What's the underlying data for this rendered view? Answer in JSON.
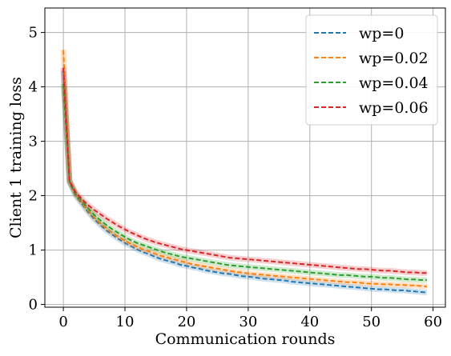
{
  "chart_data": {
    "type": "line",
    "xlabel": "Communication rounds",
    "ylabel": "Client 1 training loss",
    "xlim": [
      -3,
      62
    ],
    "ylim": [
      -0.05,
      5.45
    ],
    "xticks": [
      0,
      10,
      20,
      30,
      40,
      50,
      60
    ],
    "yticks": [
      0,
      1,
      2,
      3,
      4,
      5
    ],
    "grid": true,
    "line_style": "dashed",
    "legend_position": "top-right",
    "series": [
      {
        "name": "wp=0",
        "color": "#1f77b4",
        "x": [
          0,
          1,
          2,
          3,
          4,
          5,
          6,
          7,
          8,
          9,
          10,
          11,
          12,
          13,
          14,
          15,
          16,
          17,
          18,
          19,
          20,
          21,
          22,
          23,
          24,
          25,
          26,
          27,
          28,
          29,
          30,
          31,
          32,
          33,
          34,
          35,
          36,
          37,
          38,
          39,
          40,
          41,
          42,
          43,
          44,
          45,
          46,
          47,
          48,
          49,
          50,
          51,
          52,
          53,
          54,
          55,
          56,
          57,
          58,
          59
        ],
        "y": [
          4.3,
          2.25,
          2.0,
          1.85,
          1.7,
          1.57,
          1.46,
          1.36,
          1.28,
          1.2,
          1.13,
          1.07,
          1.01,
          0.96,
          0.92,
          0.87,
          0.83,
          0.8,
          0.77,
          0.73,
          0.71,
          0.68,
          0.66,
          0.63,
          0.61,
          0.59,
          0.57,
          0.56,
          0.54,
          0.52,
          0.51,
          0.5,
          0.48,
          0.47,
          0.46,
          0.45,
          0.44,
          0.42,
          0.41,
          0.4,
          0.39,
          0.38,
          0.37,
          0.36,
          0.35,
          0.34,
          0.33,
          0.32,
          0.31,
          0.3,
          0.29,
          0.28,
          0.28,
          0.27,
          0.26,
          0.26,
          0.25,
          0.24,
          0.23,
          0.22
        ]
      },
      {
        "name": "wp=0.02",
        "color": "#ff7f0e",
        "x": [
          0,
          1,
          2,
          3,
          4,
          5,
          6,
          7,
          8,
          9,
          10,
          11,
          12,
          13,
          14,
          15,
          16,
          17,
          18,
          19,
          20,
          21,
          22,
          23,
          24,
          25,
          26,
          27,
          28,
          29,
          30,
          31,
          32,
          33,
          34,
          35,
          36,
          37,
          38,
          39,
          40,
          41,
          42,
          43,
          44,
          45,
          46,
          47,
          48,
          49,
          50,
          51,
          52,
          53,
          54,
          55,
          56,
          57,
          58,
          59
        ],
        "y": [
          4.68,
          2.27,
          2.02,
          1.87,
          1.73,
          1.6,
          1.49,
          1.4,
          1.31,
          1.24,
          1.17,
          1.11,
          1.06,
          1.01,
          0.97,
          0.93,
          0.89,
          0.86,
          0.83,
          0.8,
          0.77,
          0.74,
          0.72,
          0.7,
          0.68,
          0.66,
          0.64,
          0.62,
          0.6,
          0.59,
          0.57,
          0.56,
          0.55,
          0.54,
          0.53,
          0.52,
          0.51,
          0.5,
          0.49,
          0.48,
          0.47,
          0.46,
          0.45,
          0.44,
          0.43,
          0.42,
          0.41,
          0.41,
          0.4,
          0.39,
          0.38,
          0.38,
          0.37,
          0.37,
          0.36,
          0.36,
          0.35,
          0.35,
          0.34,
          0.33
        ]
      },
      {
        "name": "wp=0.04",
        "color": "#2ca02c",
        "x": [
          0,
          1,
          2,
          3,
          4,
          5,
          6,
          7,
          8,
          9,
          10,
          11,
          12,
          13,
          14,
          15,
          16,
          17,
          18,
          19,
          20,
          21,
          22,
          23,
          24,
          25,
          26,
          27,
          28,
          29,
          30,
          31,
          32,
          33,
          34,
          35,
          36,
          37,
          38,
          39,
          40,
          41,
          42,
          43,
          44,
          45,
          46,
          47,
          48,
          49,
          50,
          51,
          52,
          53,
          54,
          55,
          56,
          57,
          58,
          59
        ],
        "y": [
          4.05,
          2.25,
          2.03,
          1.9,
          1.77,
          1.65,
          1.55,
          1.46,
          1.38,
          1.31,
          1.24,
          1.18,
          1.13,
          1.09,
          1.05,
          1.01,
          0.97,
          0.94,
          0.91,
          0.88,
          0.86,
          0.84,
          0.82,
          0.8,
          0.78,
          0.76,
          0.74,
          0.72,
          0.71,
          0.7,
          0.69,
          0.68,
          0.67,
          0.66,
          0.65,
          0.64,
          0.63,
          0.62,
          0.61,
          0.6,
          0.59,
          0.58,
          0.57,
          0.56,
          0.55,
          0.54,
          0.54,
          0.53,
          0.52,
          0.51,
          0.51,
          0.5,
          0.49,
          0.49,
          0.48,
          0.47,
          0.46,
          0.46,
          0.45,
          0.45
        ]
      },
      {
        "name": "wp=0.06",
        "color": "#d62728",
        "x": [
          0,
          1,
          2,
          3,
          4,
          5,
          6,
          7,
          8,
          9,
          10,
          11,
          12,
          13,
          14,
          15,
          16,
          17,
          18,
          19,
          20,
          21,
          22,
          23,
          24,
          25,
          26,
          27,
          28,
          29,
          30,
          31,
          32,
          33,
          34,
          35,
          36,
          37,
          38,
          39,
          40,
          41,
          42,
          43,
          44,
          45,
          46,
          47,
          48,
          49,
          50,
          51,
          52,
          53,
          54,
          55,
          56,
          57,
          58,
          59
        ],
        "y": [
          4.35,
          2.27,
          2.06,
          1.94,
          1.83,
          1.74,
          1.66,
          1.58,
          1.51,
          1.44,
          1.38,
          1.32,
          1.27,
          1.22,
          1.18,
          1.14,
          1.11,
          1.08,
          1.05,
          1.02,
          1.0,
          0.98,
          0.96,
          0.94,
          0.92,
          0.9,
          0.88,
          0.86,
          0.85,
          0.84,
          0.83,
          0.82,
          0.81,
          0.8,
          0.79,
          0.78,
          0.77,
          0.76,
          0.75,
          0.74,
          0.73,
          0.72,
          0.71,
          0.7,
          0.69,
          0.68,
          0.67,
          0.66,
          0.65,
          0.65,
          0.64,
          0.63,
          0.62,
          0.62,
          0.61,
          0.6,
          0.59,
          0.59,
          0.58,
          0.58
        ]
      }
    ]
  }
}
